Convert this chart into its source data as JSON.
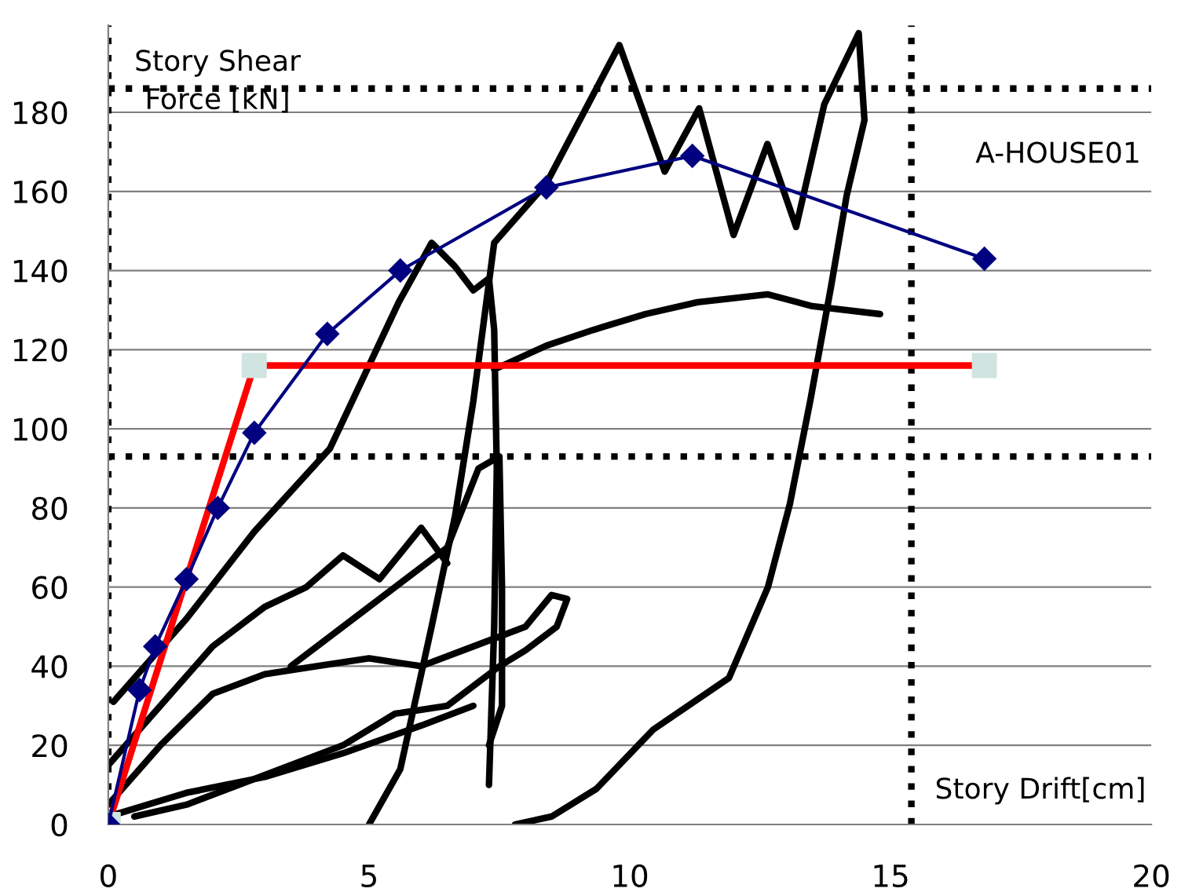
{
  "chart_data": {
    "type": "line",
    "xlabel": "Story Drift[cm]",
    "ylabel": "Story Shear\nForce [kN]",
    "annotations": [
      "A-HOUSE01"
    ],
    "xlim": [
      0,
      20
    ],
    "xticks": [
      0,
      5,
      10,
      15,
      20
    ],
    "ylim": [
      0,
      202
    ],
    "yticks": [
      0,
      20,
      40,
      60,
      80,
      100,
      120,
      140,
      160,
      180
    ],
    "grid": "y",
    "ref_lines": [
      {
        "axis": "x",
        "value": 0,
        "color": "#000000",
        "line_style": "dotted"
      },
      {
        "axis": "x",
        "value": 15.4,
        "color": "#000000",
        "line_style": "dotted"
      },
      {
        "axis": "y",
        "value": 93,
        "color": "#000000",
        "line_style": "dotted"
      },
      {
        "axis": "y",
        "value": 186,
        "color": "#000000",
        "line_style": "dotted"
      }
    ],
    "series": [
      {
        "color": "#000000",
        "marker": "none",
        "x": [
          5,
          5.6,
          6.2,
          6.65,
          7.0,
          7.2,
          7.4,
          8.4,
          9.8,
          10.67,
          11.33,
          11.99,
          12.64,
          13.19,
          13.73,
          14.39,
          14.5,
          14.16,
          13.86,
          13.46,
          13.07,
          12.65,
          11.9,
          10.45,
          9.36,
          8.5,
          7.8
        ],
        "values": [
          0,
          14,
          50,
          78,
          107,
          127,
          147,
          162,
          197,
          165,
          181,
          149,
          172,
          151,
          182,
          200,
          178,
          159,
          136,
          107,
          81,
          60,
          37,
          24,
          9,
          2,
          0
        ]
      },
      {
        "color": "#000000",
        "marker": "none",
        "x": [
          0.1,
          1.5,
          2.8,
          4.25,
          5.57,
          6.2,
          6.65,
          7.0,
          7.3,
          7.4,
          7.45,
          7.4,
          7.3
        ],
        "values": [
          31,
          52,
          74,
          95,
          132,
          147,
          141,
          135,
          138,
          125,
          90,
          50,
          10
        ]
      },
      {
        "color": "#000000",
        "marker": "none",
        "x": [
          7.4,
          8.4,
          9.3,
          10.3,
          11.3,
          12.64,
          13.5,
          14.8
        ],
        "values": [
          115,
          121,
          125,
          129,
          132,
          134,
          131,
          129
        ]
      },
      {
        "color": "#000000",
        "marker": "none",
        "x": [
          3.5,
          5.0,
          6.5,
          7.1,
          7.5,
          7.55,
          7.55,
          7.3
        ],
        "values": [
          40,
          55,
          70,
          90,
          93,
          60,
          30,
          20
        ]
      },
      {
        "color": "#000000",
        "marker": "none",
        "x": [
          0,
          1,
          2,
          3,
          4,
          5,
          6,
          7,
          8,
          8.5,
          8.8,
          8.6,
          8.0,
          7.5,
          6.5,
          5.5,
          4.5,
          3.5,
          2.5,
          1.5,
          0.5
        ],
        "values": [
          5,
          20,
          33,
          38,
          40,
          42,
          40,
          45,
          50,
          58,
          57,
          50,
          44,
          40,
          30,
          28,
          20,
          15,
          10,
          5,
          2
        ]
      },
      {
        "color": "#000000",
        "marker": "none",
        "x": [
          0,
          1,
          2,
          3,
          3.8,
          4.5,
          5.2,
          6,
          6.5
        ],
        "values": [
          15,
          30,
          45,
          55,
          60,
          68,
          62,
          75,
          66
        ]
      },
      {
        "color": "#000000",
        "marker": "none",
        "x": [
          0,
          1.5,
          3,
          4.5,
          6,
          7
        ],
        "values": [
          2,
          8,
          12,
          18,
          25,
          30
        ]
      },
      {
        "color": "#ff0000",
        "marker": "none",
        "x": [
          0,
          2.8,
          16.8
        ],
        "values": [
          0,
          116,
          116
        ]
      },
      {
        "type": "scatter",
        "color": "#d0e4e0",
        "marker": "square",
        "x": [
          0,
          2.8,
          16.8
        ],
        "values": [
          0,
          116,
          116
        ]
      },
      {
        "color": "#000080",
        "marker": "diamond",
        "x": [
          0,
          0.6,
          0.9,
          1.5,
          2.1,
          2.8,
          4.2,
          5.6,
          8.4,
          11.2,
          16.8
        ],
        "values": [
          0,
          34,
          45,
          62,
          80,
          99,
          124,
          140,
          161,
          169,
          143
        ]
      }
    ]
  }
}
